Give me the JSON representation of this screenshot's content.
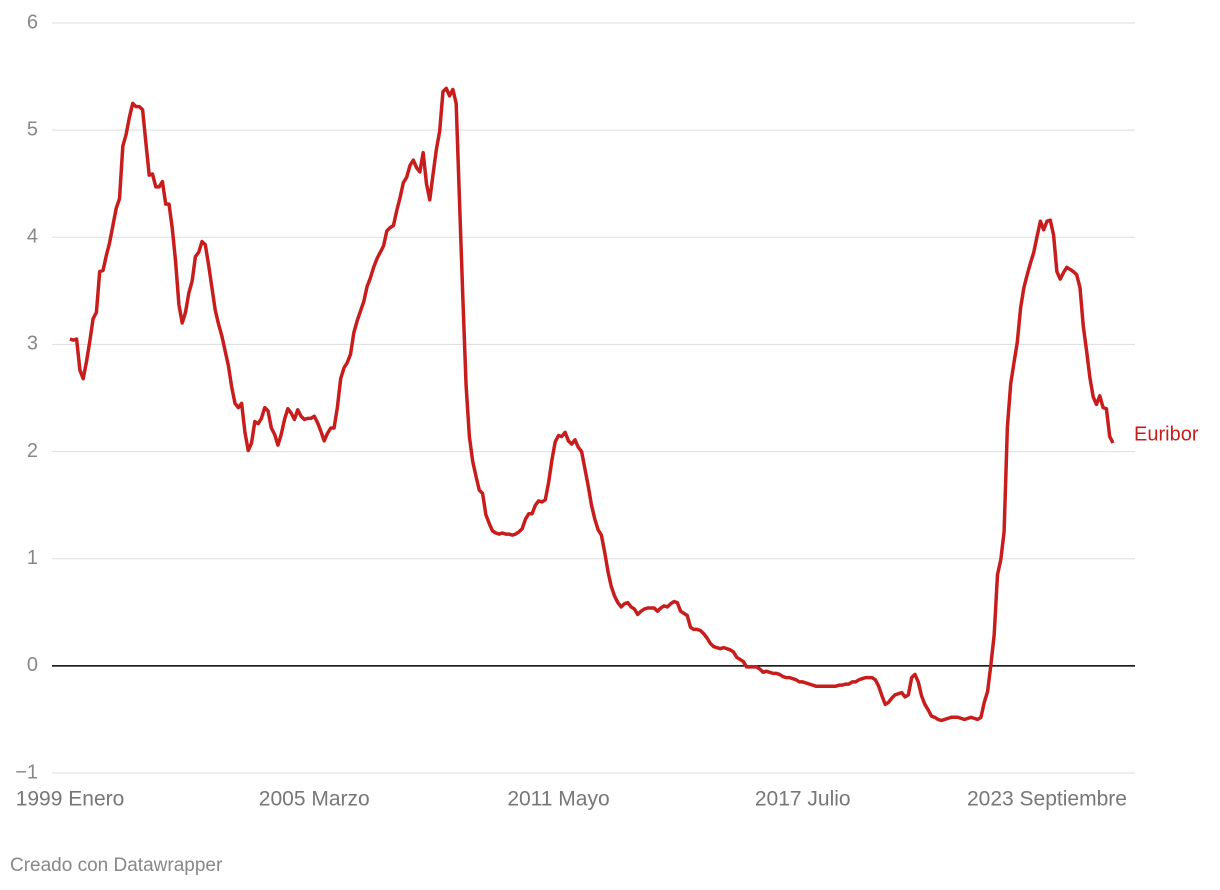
{
  "chart_data": {
    "type": "line",
    "categories": [
      "1999 Enero",
      null,
      null,
      null,
      null,
      null,
      null,
      null,
      null,
      null,
      null,
      null,
      null,
      null,
      null,
      null,
      null,
      null,
      null,
      null,
      null,
      null,
      null,
      null,
      null,
      null,
      null,
      null,
      null,
      null,
      null,
      null,
      null,
      null,
      null,
      null,
      null,
      null,
      null,
      null,
      null,
      null,
      null,
      null,
      null,
      null,
      null,
      null,
      null,
      null,
      null,
      null,
      null,
      null,
      null,
      null,
      null,
      null,
      null,
      null,
      null,
      null,
      null,
      null,
      null,
      null,
      null,
      null,
      null,
      null,
      null,
      null,
      null,
      null,
      "2005 Marzo",
      null,
      null,
      null,
      null,
      null,
      null,
      null,
      null,
      null,
      null,
      null,
      null,
      null,
      null,
      null,
      null,
      null,
      null,
      null,
      null,
      null,
      null,
      null,
      null,
      null,
      null,
      null,
      null,
      null,
      null,
      null,
      null,
      null,
      null,
      null,
      null,
      null,
      null,
      null,
      null,
      null,
      null,
      null,
      null,
      null,
      null,
      null,
      null,
      null,
      null,
      null,
      null,
      null,
      null,
      null,
      null,
      null,
      null,
      null,
      null,
      null,
      null,
      null,
      null,
      null,
      null,
      null,
      null,
      null,
      null,
      null,
      null,
      null,
      "2011 Mayo",
      null,
      null,
      null,
      null,
      null,
      null,
      null,
      null,
      null,
      null,
      null,
      null,
      null,
      null,
      null,
      null,
      null,
      null,
      null,
      null,
      null,
      null,
      null,
      null,
      null,
      null,
      null,
      null,
      null,
      null,
      null,
      null,
      null,
      null,
      null,
      null,
      null,
      null,
      null,
      null,
      null,
      null,
      null,
      null,
      null,
      null,
      null,
      null,
      null,
      null,
      null,
      null,
      null,
      null,
      null,
      null,
      null,
      null,
      null,
      null,
      null,
      null,
      null,
      null,
      null,
      null,
      null,
      null,
      null,
      null,
      null,
      null,
      null,
      "2017 Julio",
      null,
      null,
      null,
      null,
      null,
      null,
      null,
      null,
      null,
      null,
      null,
      null,
      null,
      null,
      null,
      null,
      null,
      null,
      null,
      null,
      null,
      null,
      null,
      null,
      null,
      null,
      null,
      null,
      null,
      null,
      null,
      null,
      null,
      null,
      null,
      null,
      null,
      null,
      null,
      null,
      null,
      null,
      null,
      null,
      null,
      null,
      null,
      null,
      null,
      null,
      null,
      null,
      null,
      null,
      null,
      null,
      null,
      null,
      null,
      null,
      null,
      null,
      null,
      null,
      null,
      null,
      null,
      null,
      null,
      null,
      null,
      null,
      null,
      "2023 Septiembre",
      null,
      null,
      null,
      null,
      null,
      null,
      null,
      null,
      null,
      null,
      null,
      null,
      null,
      null,
      null,
      null,
      null,
      null,
      null,
      null
    ],
    "series": [
      {
        "name": "Euribor",
        "color": "#c71e1d",
        "values": [
          3.05,
          3.04,
          3.05,
          2.76,
          2.68,
          2.84,
          3.03,
          3.24,
          3.3,
          3.68,
          3.69,
          3.83,
          3.95,
          4.11,
          4.27,
          4.36,
          4.85,
          4.96,
          5.12,
          5.25,
          5.22,
          5.22,
          5.19,
          4.88,
          4.58,
          4.59,
          4.47,
          4.47,
          4.52,
          4.31,
          4.31,
          4.08,
          3.77,
          3.37,
          3.2,
          3.3,
          3.48,
          3.59,
          3.82,
          3.86,
          3.96,
          3.93,
          3.74,
          3.53,
          3.32,
          3.19,
          3.08,
          2.94,
          2.8,
          2.6,
          2.45,
          2.41,
          2.45,
          2.18,
          2.01,
          2.08,
          2.28,
          2.26,
          2.31,
          2.41,
          2.38,
          2.22,
          2.16,
          2.06,
          2.16,
          2.3,
          2.4,
          2.36,
          2.3,
          2.39,
          2.33,
          2.3,
          2.31,
          2.31,
          2.33,
          2.27,
          2.19,
          2.1,
          2.17,
          2.22,
          2.22,
          2.41,
          2.68,
          2.78,
          2.83,
          2.91,
          3.11,
          3.22,
          3.31,
          3.4,
          3.54,
          3.62,
          3.72,
          3.8,
          3.86,
          3.92,
          4.06,
          4.09,
          4.11,
          4.25,
          4.37,
          4.51,
          4.56,
          4.67,
          4.72,
          4.65,
          4.61,
          4.79,
          4.5,
          4.35,
          4.59,
          4.82,
          4.99,
          5.36,
          5.39,
          5.32,
          5.38,
          5.25,
          4.35,
          3.45,
          2.62,
          2.14,
          1.91,
          1.77,
          1.64,
          1.61,
          1.41,
          1.33,
          1.26,
          1.24,
          1.23,
          1.24,
          1.23,
          1.23,
          1.22,
          1.23,
          1.25,
          1.28,
          1.37,
          1.42,
          1.42,
          1.5,
          1.54,
          1.53,
          1.55,
          1.71,
          1.92,
          2.09,
          2.15,
          2.14,
          2.18,
          2.1,
          2.07,
          2.11,
          2.04,
          2.0,
          1.84,
          1.68,
          1.5,
          1.37,
          1.27,
          1.22,
          1.06,
          0.88,
          0.74,
          0.65,
          0.59,
          0.55,
          0.58,
          0.59,
          0.55,
          0.53,
          0.48,
          0.51,
          0.53,
          0.54,
          0.54,
          0.54,
          0.51,
          0.54,
          0.56,
          0.55,
          0.58,
          0.6,
          0.59,
          0.51,
          0.49,
          0.47,
          0.36,
          0.34,
          0.34,
          0.33,
          0.3,
          0.26,
          0.21,
          0.18,
          0.17,
          0.16,
          0.17,
          0.16,
          0.15,
          0.13,
          0.08,
          0.06,
          0.04,
          -0.01,
          -0.01,
          -0.01,
          -0.01,
          -0.03,
          -0.06,
          -0.05,
          -0.06,
          -0.07,
          -0.07,
          -0.08,
          -0.1,
          -0.11,
          -0.11,
          -0.12,
          -0.13,
          -0.15,
          -0.15,
          -0.16,
          -0.17,
          -0.18,
          -0.19,
          -0.19,
          -0.19,
          -0.19,
          -0.19,
          -0.19,
          -0.19,
          -0.18,
          -0.18,
          -0.17,
          -0.17,
          -0.15,
          -0.15,
          -0.13,
          -0.12,
          -0.11,
          -0.11,
          -0.11,
          -0.13,
          -0.19,
          -0.28,
          -0.36,
          -0.34,
          -0.3,
          -0.27,
          -0.26,
          -0.25,
          -0.29,
          -0.27,
          -0.11,
          -0.08,
          -0.15,
          -0.28,
          -0.36,
          -0.41,
          -0.47,
          -0.48,
          -0.5,
          -0.51,
          -0.5,
          -0.49,
          -0.48,
          -0.48,
          -0.48,
          -0.49,
          -0.5,
          -0.49,
          -0.48,
          -0.49,
          -0.5,
          -0.48,
          -0.34,
          -0.24,
          0.01,
          0.29,
          0.85,
          0.99,
          1.25,
          2.23,
          2.63,
          2.83,
          3.02,
          3.34,
          3.53,
          3.65,
          3.76,
          3.86,
          4.01,
          4.15,
          4.07,
          4.15,
          4.16,
          4.02,
          3.68,
          3.61,
          3.67,
          3.72,
          3.7,
          3.68,
          3.65,
          3.53,
          3.17,
          2.94,
          2.69,
          2.51,
          2.44,
          2.52,
          2.41,
          2.4,
          2.14,
          2.08
        ]
      }
    ],
    "ylim": [
      -1,
      6
    ],
    "yticks": [
      {
        "value": -1,
        "label": "−1"
      },
      0,
      1,
      2,
      3,
      4,
      5,
      6
    ],
    "grid": true,
    "footer": "Creado con Datawrapper"
  }
}
